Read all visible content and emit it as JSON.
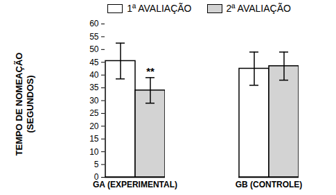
{
  "chart_data": {
    "type": "bar",
    "categories": [
      "GA (EXPERIMENTAL)",
      "GB (CONTROLE)"
    ],
    "series": [
      {
        "name": "1ª AVALIAÇÃO",
        "color": "#ffffff",
        "values": [
          45.5,
          42.5
        ],
        "errors": [
          7,
          6.5
        ]
      },
      {
        "name": "2ª AVALIAÇÃO",
        "color": "#d3d3d3",
        "values": [
          34,
          43.5
        ],
        "errors": [
          5,
          5.5
        ]
      }
    ],
    "y_label": "TEMPO DE NOMEAÇÃO\n(SEGUNDOS)",
    "ylim": [
      0,
      60
    ],
    "yticks": [
      0,
      5,
      10,
      15,
      20,
      25,
      30,
      35,
      40,
      45,
      50,
      55,
      60
    ],
    "legend": "top",
    "annotations": [
      {
        "text": "**",
        "category": "GA (EXPERIMENTAL)",
        "series": "2ª AVALIAÇÃO"
      }
    ]
  }
}
